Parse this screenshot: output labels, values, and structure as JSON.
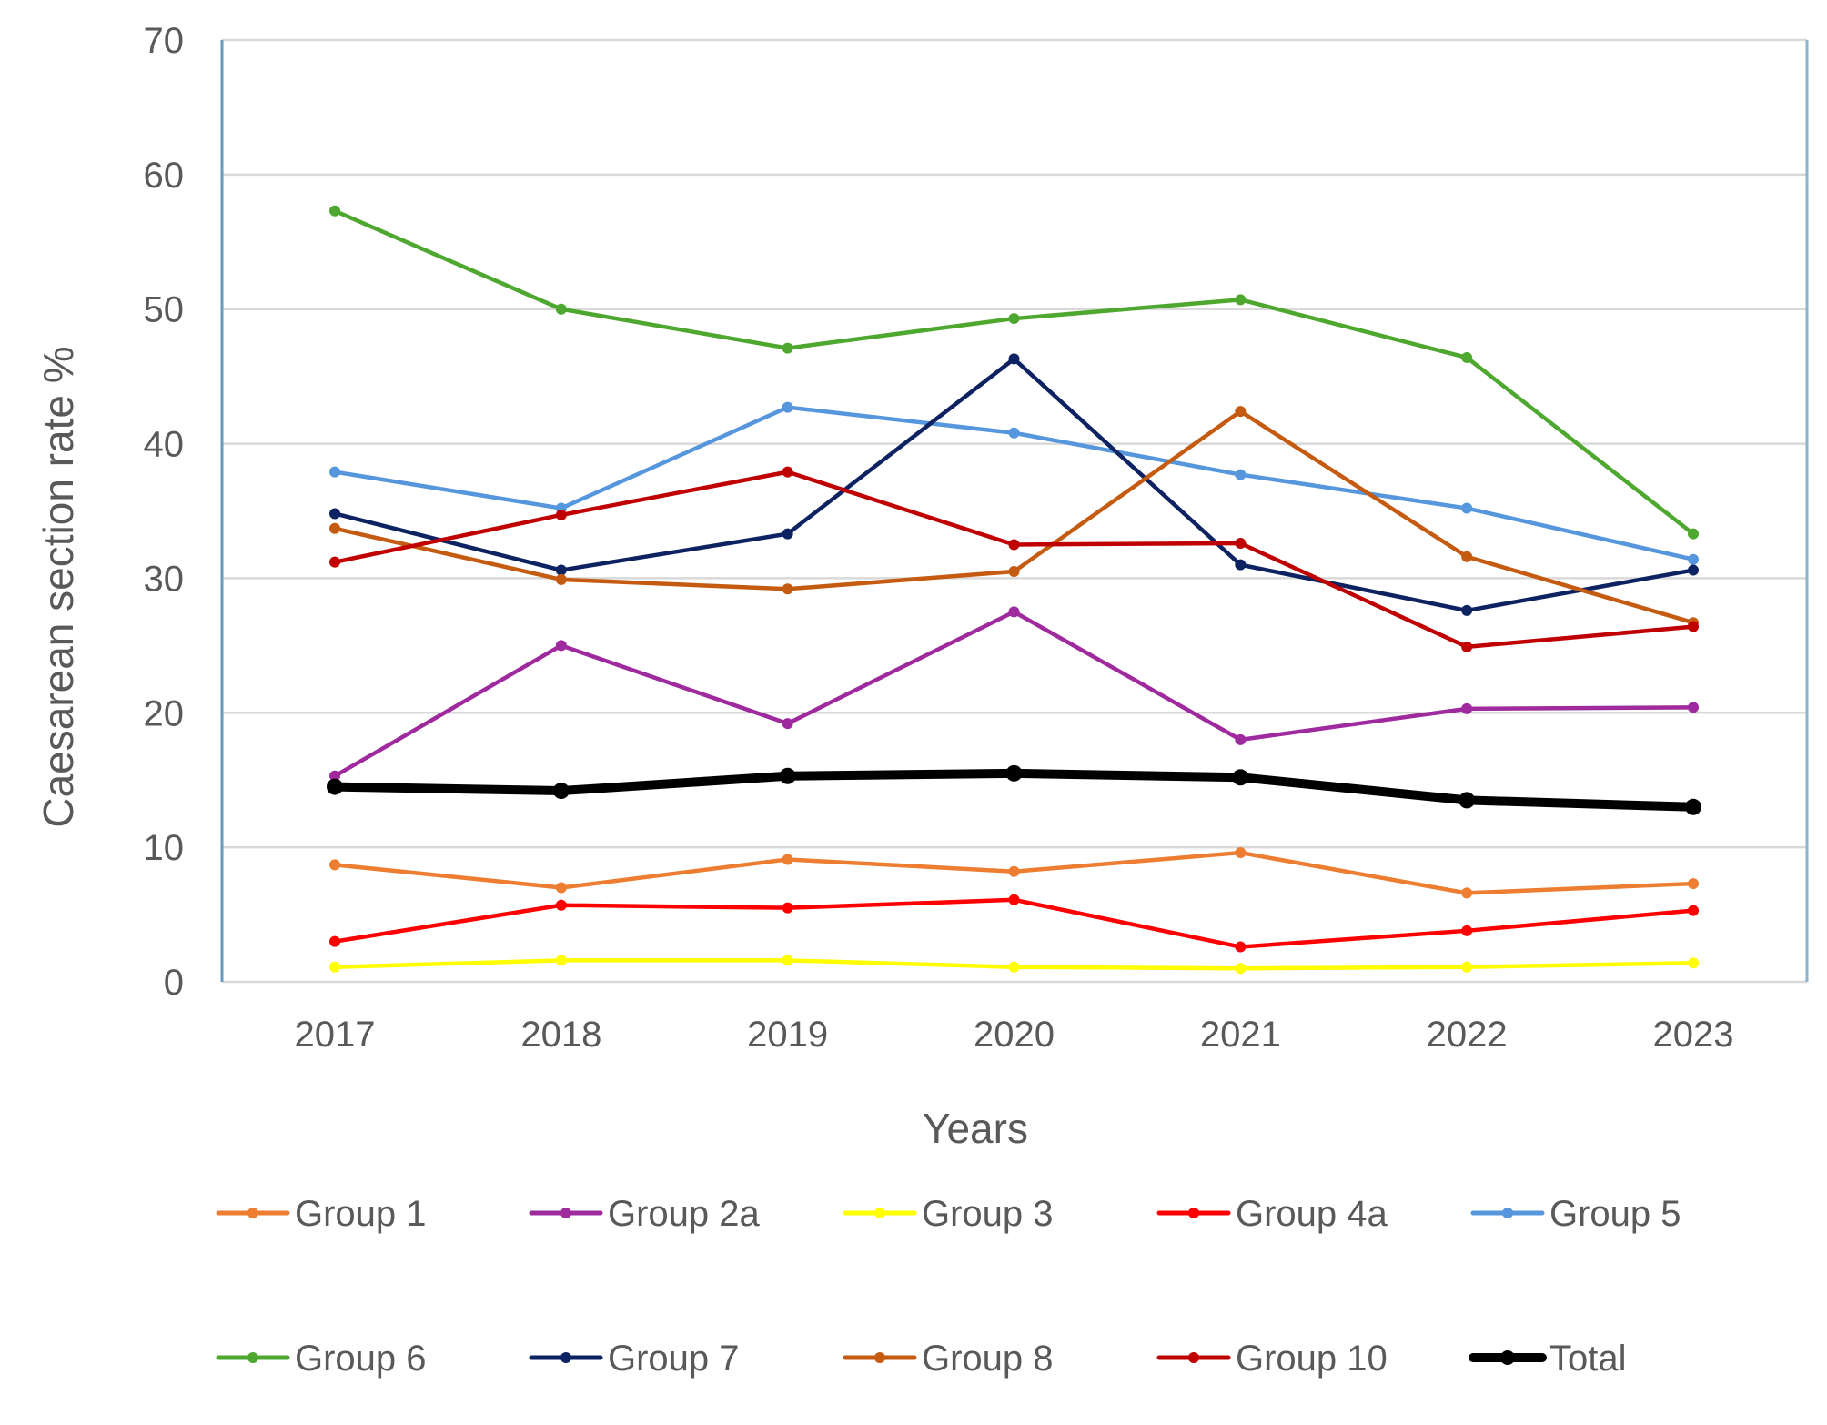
{
  "chart_data": {
    "type": "line",
    "title": "",
    "xlabel": "Years",
    "ylabel": "Caesarean section rate %",
    "ylim": [
      0,
      70
    ],
    "yticks": [
      0,
      10,
      20,
      30,
      40,
      50,
      60,
      70
    ],
    "grid": true,
    "legend_position": "bottom",
    "x": [
      "2017",
      "2018",
      "2019",
      "2020",
      "2021",
      "2022",
      "2023"
    ],
    "series": [
      {
        "name": "Group 1",
        "color": "#ed7d31",
        "bold": false,
        "values": [
          8.7,
          7.0,
          9.1,
          8.2,
          9.6,
          6.6,
          7.3
        ]
      },
      {
        "name": "Group 2a",
        "color": "#9e2a9e",
        "bold": false,
        "values": [
          15.3,
          25.0,
          19.2,
          27.5,
          18.0,
          20.3,
          20.4
        ]
      },
      {
        "name": "Group 3",
        "color": "#ffff00",
        "bold": false,
        "values": [
          1.1,
          1.6,
          1.6,
          1.1,
          1.0,
          1.1,
          1.4
        ]
      },
      {
        "name": "Group 4a",
        "color": "#ff0000",
        "bold": false,
        "values": [
          3.0,
          5.7,
          5.5,
          6.1,
          2.6,
          3.8,
          5.3
        ]
      },
      {
        "name": "Group 5",
        "color": "#5596dc",
        "bold": false,
        "values": [
          37.9,
          35.2,
          42.7,
          40.8,
          37.7,
          35.2,
          31.4
        ]
      },
      {
        "name": "Group 6",
        "color": "#4ea72e",
        "bold": false,
        "values": [
          57.3,
          50.0,
          47.1,
          49.3,
          50.7,
          46.4,
          33.3
        ]
      },
      {
        "name": "Group 7",
        "color": "#0d2261",
        "bold": false,
        "values": [
          34.8,
          30.6,
          33.3,
          46.3,
          31.0,
          27.6,
          30.6
        ]
      },
      {
        "name": "Group 8",
        "color": "#c55a11",
        "bold": false,
        "values": [
          33.7,
          29.9,
          29.2,
          30.5,
          42.4,
          31.6,
          26.7
        ]
      },
      {
        "name": "Group 10",
        "color": "#c00000",
        "bold": false,
        "values": [
          31.2,
          34.7,
          37.9,
          32.5,
          32.6,
          24.9,
          26.4
        ]
      },
      {
        "name": "Total",
        "color": "#000000",
        "bold": true,
        "values": [
          14.5,
          14.2,
          15.3,
          15.5,
          15.2,
          13.5,
          13.0
        ]
      }
    ]
  }
}
